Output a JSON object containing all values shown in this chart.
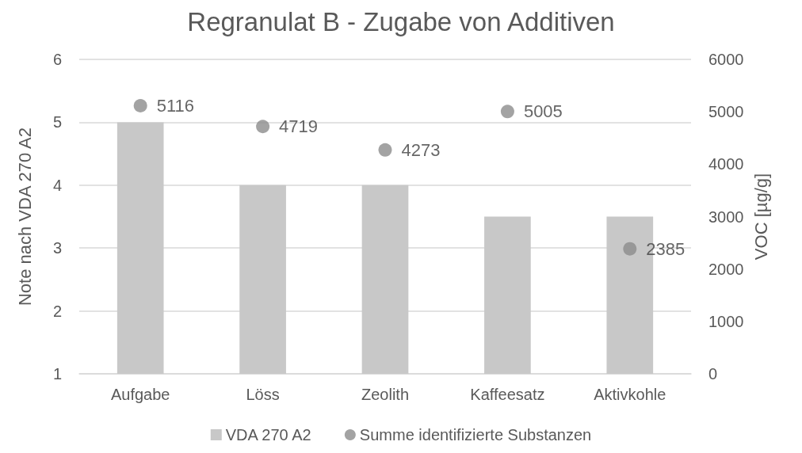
{
  "chart_data": {
    "type": "bar",
    "title": "Regranulat B - Zugabe von Additiven",
    "ylabel": "Note nach VDA 270 A2",
    "y2label": "VOC [µg/g]",
    "categories": [
      "Aufgabe",
      "Löss",
      "Zeolith",
      "Kaffeesatz",
      "Aktivkohle"
    ],
    "series": [
      {
        "name": "VDA 270 A2",
        "color": "#c8c8c8",
        "values": [
          5,
          4,
          4,
          3.5,
          3.5
        ]
      },
      {
        "name": "Summe identifizierte Substanzen",
        "type": "scatter",
        "axis": "y2",
        "color": "#8c8c8c",
        "values": [
          5116,
          4719,
          4273,
          5005,
          2385
        ],
        "value_labels": [
          "5116",
          "4719",
          "4273",
          "5005",
          "2385"
        ]
      }
    ],
    "ylim": [
      1,
      6
    ],
    "yticks": [
      1,
      2,
      3,
      4,
      5,
      6
    ],
    "y2lim": [
      0,
      6000
    ],
    "y2ticks": [
      0,
      1000,
      2000,
      3000,
      4000,
      5000,
      6000
    ],
    "grid": "y",
    "legend": "bottom",
    "marker": "circle"
  }
}
